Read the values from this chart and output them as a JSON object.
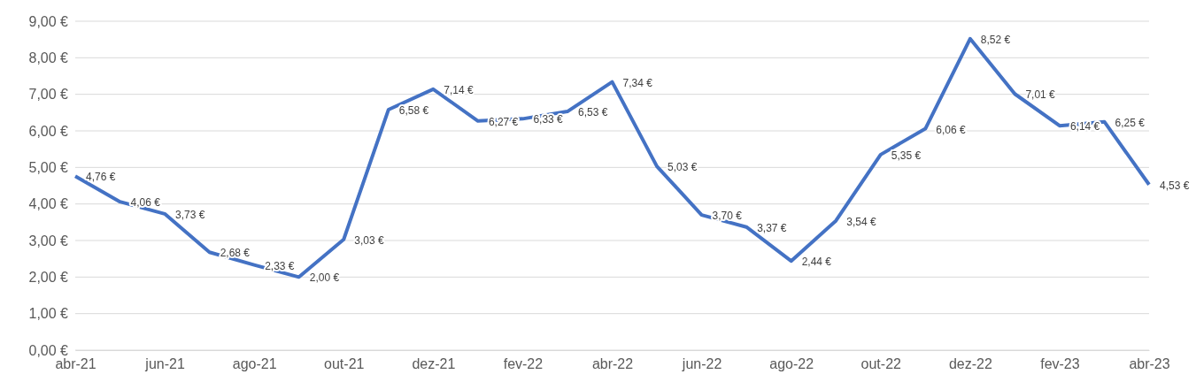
{
  "chart_data": {
    "type": "line",
    "categories": [
      "abr-21",
      null,
      "jun-21",
      null,
      "ago-21",
      null,
      "out-21",
      null,
      "dez-21",
      null,
      "fev-22",
      null,
      "abr-22",
      null,
      "jun-22",
      null,
      "ago-22",
      null,
      "out-22",
      null,
      "dez-22",
      null,
      "fev-23",
      null,
      "abr-23"
    ],
    "series": [
      {
        "color": "#4472c4",
        "values": [
          4.76,
          4.06,
          3.73,
          2.68,
          2.33,
          2.0,
          3.03,
          6.58,
          7.14,
          6.27,
          6.33,
          6.53,
          7.34,
          5.03,
          3.7,
          3.37,
          2.44,
          3.54,
          5.35,
          6.06,
          8.52,
          7.01,
          6.14,
          6.25,
          4.53
        ],
        "value_labels": [
          "4,76 €",
          "4,06 €",
          "3,73 €",
          "2,68 €",
          "2,33 €",
          "2,00 €",
          "3,03 €",
          "6,58 €",
          "7,14 €",
          "6,27 €",
          "6,33 €",
          "6,53 €",
          "7,34 €",
          "5,03 €",
          "3,70 €",
          "3,37 €",
          "2,44 €",
          "3,54 €",
          "5,35 €",
          "6,06 €",
          "8,52 €",
          "7,01 €",
          "6,14 €",
          "6,25 €",
          "4,53 €"
        ]
      }
    ],
    "ylim": [
      0,
      9
    ],
    "yticks": [
      {
        "value": 0,
        "label": "0,00 €"
      },
      {
        "value": 1,
        "label": "1,00 €"
      },
      {
        "value": 2,
        "label": "2,00 €"
      },
      {
        "value": 3,
        "label": "3,00 €"
      },
      {
        "value": 4,
        "label": "4,00 €"
      },
      {
        "value": 5,
        "label": "5,00 €"
      },
      {
        "value": 6,
        "label": "6,00 €"
      },
      {
        "value": 7,
        "label": "7,00 €"
      },
      {
        "value": 8,
        "label": "8,00 €"
      },
      {
        "value": 9,
        "label": "9,00 €"
      }
    ],
    "grid": "y",
    "marker": "none",
    "line_style": "solid"
  }
}
